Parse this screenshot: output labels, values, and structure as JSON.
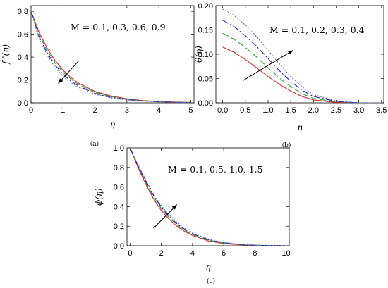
{
  "chart_data": [
    {
      "type": "line",
      "panel_label": "(a)",
      "xlabel": "η",
      "ylabel": "f '(η)",
      "annotation": "M = 0.1, 0.3, 0.6, 0.9",
      "xlim": [
        0,
        5.1
      ],
      "ylim": [
        0,
        0.85
      ],
      "xticks": [
        0,
        1,
        2,
        3,
        4,
        5
      ],
      "yticks": [
        0.0,
        0.2,
        0.4,
        0.6,
        0.8
      ],
      "ytick_labels": [
        "0.0",
        "0.2",
        "0.4",
        "0.6",
        "0.8"
      ],
      "grid": false,
      "series": [
        {
          "color": "#d62728",
          "dash": "",
          "x": [
            0,
            0.25,
            0.5,
            0.75,
            1,
            1.25,
            1.5,
            2,
            2.5,
            3,
            3.5,
            4,
            4.5,
            5
          ],
          "y": [
            0.8,
            0.62,
            0.48,
            0.37,
            0.285,
            0.22,
            0.17,
            0.1,
            0.06,
            0.035,
            0.02,
            0.012,
            0.007,
            0.004
          ]
        },
        {
          "color": "#2ca02c",
          "dash": "7,4",
          "x": [
            0,
            0.25,
            0.5,
            0.75,
            1,
            1.25,
            1.5,
            2,
            2.5,
            3,
            3.5,
            4,
            4.5,
            5
          ],
          "y": [
            0.8,
            0.6,
            0.46,
            0.35,
            0.27,
            0.205,
            0.158,
            0.092,
            0.054,
            0.031,
            0.018,
            0.01,
            0.006,
            0.003
          ]
        },
        {
          "color": "#1f1fb4",
          "dash": "9,3,2,3",
          "x": [
            0,
            0.25,
            0.5,
            0.75,
            1,
            1.25,
            1.5,
            2,
            2.5,
            3,
            3.5,
            4,
            4.5,
            5
          ],
          "y": [
            0.8,
            0.58,
            0.44,
            0.33,
            0.25,
            0.19,
            0.145,
            0.083,
            0.048,
            0.027,
            0.016,
            0.009,
            0.005,
            0.003
          ]
        },
        {
          "color": "#6a6ab4",
          "dash": "2,2",
          "x": [
            0,
            0.25,
            0.5,
            0.75,
            1,
            1.25,
            1.5,
            2,
            2.5,
            3,
            3.5,
            4,
            4.5,
            5
          ],
          "y": [
            0.8,
            0.56,
            0.42,
            0.31,
            0.23,
            0.175,
            0.133,
            0.075,
            0.043,
            0.024,
            0.014,
            0.008,
            0.004,
            0.002
          ]
        }
      ],
      "arrow": {
        "from": [
          1.5,
          0.37
        ],
        "to": [
          0.85,
          0.17
        ]
      }
    },
    {
      "type": "line",
      "panel_label": "(b)",
      "xlabel": "η",
      "ylabel": "θ(η)",
      "annotation": "M = 0.1, 0.2, 0.3, 0.4",
      "xlim": [
        -0.15,
        3.55
      ],
      "ylim": [
        0,
        0.2
      ],
      "xticks": [
        0,
        0.5,
        1,
        1.5,
        2,
        2.5,
        3,
        3.5
      ],
      "xtick_labels": [
        "0.0",
        "0.5",
        "1.0",
        "1.5",
        "2.0",
        "2.5",
        "3.0",
        "3.5"
      ],
      "yticks": [
        0,
        0.05,
        0.1,
        0.15,
        0.2
      ],
      "ytick_labels": [
        "0.00",
        "0.05",
        "0.10",
        "0.15",
        "0.20"
      ],
      "grid": false,
      "series": [
        {
          "color": "#d62728",
          "dash": "",
          "x": [
            0,
            0.25,
            0.5,
            0.75,
            1,
            1.25,
            1.5,
            1.75,
            2,
            2.5,
            3,
            3.5
          ],
          "y": [
            0.115,
            0.104,
            0.089,
            0.072,
            0.054,
            0.038,
            0.024,
            0.013,
            0.006,
            0.001,
            0,
            0
          ]
        },
        {
          "color": "#2ca02c",
          "dash": "9,4",
          "x": [
            0,
            0.25,
            0.5,
            0.75,
            1,
            1.25,
            1.5,
            1.75,
            2,
            2.5,
            3,
            3.5
          ],
          "y": [
            0.143,
            0.131,
            0.114,
            0.094,
            0.072,
            0.051,
            0.033,
            0.019,
            0.009,
            0.002,
            0,
            0
          ]
        },
        {
          "color": "#1f1fb4",
          "dash": "9,3,2,3",
          "x": [
            0,
            0.25,
            0.5,
            0.75,
            1,
            1.25,
            1.5,
            1.75,
            2,
            2.5,
            3,
            3.5
          ],
          "y": [
            0.17,
            0.157,
            0.138,
            0.116,
            0.091,
            0.066,
            0.044,
            0.026,
            0.013,
            0.003,
            0,
            0
          ]
        },
        {
          "color": "#6a6ab4",
          "dash": "2,2",
          "x": [
            0,
            0.25,
            0.5,
            0.75,
            1,
            1.25,
            1.5,
            1.75,
            2,
            2.5,
            3,
            3.5
          ],
          "y": [
            0.193,
            0.18,
            0.16,
            0.136,
            0.108,
            0.08,
            0.054,
            0.033,
            0.017,
            0.004,
            0,
            0
          ]
        }
      ],
      "arrow": {
        "from": [
          0.45,
          0.046
        ],
        "to": [
          1.55,
          0.108
        ]
      }
    },
    {
      "type": "line",
      "panel_label": "(c)",
      "xlabel": "η",
      "ylabel": "ϕ(η)",
      "annotation": "M = 0.1, 0.5, 1.0, 1.5",
      "xlim": [
        -0.2,
        10.2
      ],
      "ylim": [
        0,
        1.0
      ],
      "xticks": [
        0,
        2,
        4,
        6,
        8,
        10
      ],
      "yticks": [
        0,
        0.2,
        0.4,
        0.6,
        0.8,
        1.0
      ],
      "ytick_labels": [
        "0.0",
        "0.2",
        "0.4",
        "0.6",
        "0.8",
        "1.0"
      ],
      "grid": false,
      "series": [
        {
          "color": "#d62728",
          "dash": "",
          "x": [
            0,
            0.5,
            1,
            1.5,
            2,
            2.5,
            3,
            3.5,
            4,
            5,
            6,
            7,
            8,
            9,
            10
          ],
          "y": [
            1,
            0.8,
            0.63,
            0.48,
            0.36,
            0.27,
            0.2,
            0.145,
            0.105,
            0.05,
            0.022,
            0.01,
            0.004,
            0.002,
            0.001
          ]
        },
        {
          "color": "#2ca02c",
          "dash": "9,4",
          "x": [
            0,
            0.5,
            1,
            1.5,
            2,
            2.5,
            3,
            3.5,
            4,
            5,
            6,
            7,
            8,
            9,
            10
          ],
          "y": [
            1,
            0.81,
            0.645,
            0.5,
            0.38,
            0.287,
            0.214,
            0.157,
            0.115,
            0.056,
            0.026,
            0.012,
            0.005,
            0.002,
            0.001
          ]
        },
        {
          "color": "#1f1fb4",
          "dash": "9,3,2,3",
          "x": [
            0,
            0.5,
            1,
            1.5,
            2,
            2.5,
            3,
            3.5,
            4,
            5,
            6,
            7,
            8,
            9,
            10
          ],
          "y": [
            1,
            0.82,
            0.66,
            0.515,
            0.395,
            0.3,
            0.226,
            0.168,
            0.124,
            0.062,
            0.03,
            0.014,
            0.006,
            0.003,
            0.001
          ]
        },
        {
          "color": "#6a6ab4",
          "dash": "2,2",
          "x": [
            0,
            0.5,
            1,
            1.5,
            2,
            2.5,
            3,
            3.5,
            4,
            5,
            6,
            7,
            8,
            9,
            10
          ],
          "y": [
            1,
            0.83,
            0.675,
            0.53,
            0.41,
            0.315,
            0.24,
            0.18,
            0.133,
            0.068,
            0.034,
            0.016,
            0.007,
            0.003,
            0.001
          ]
        }
      ],
      "arrow": {
        "from": [
          1.5,
          0.18
        ],
        "to": [
          3.0,
          0.42
        ]
      }
    }
  ]
}
